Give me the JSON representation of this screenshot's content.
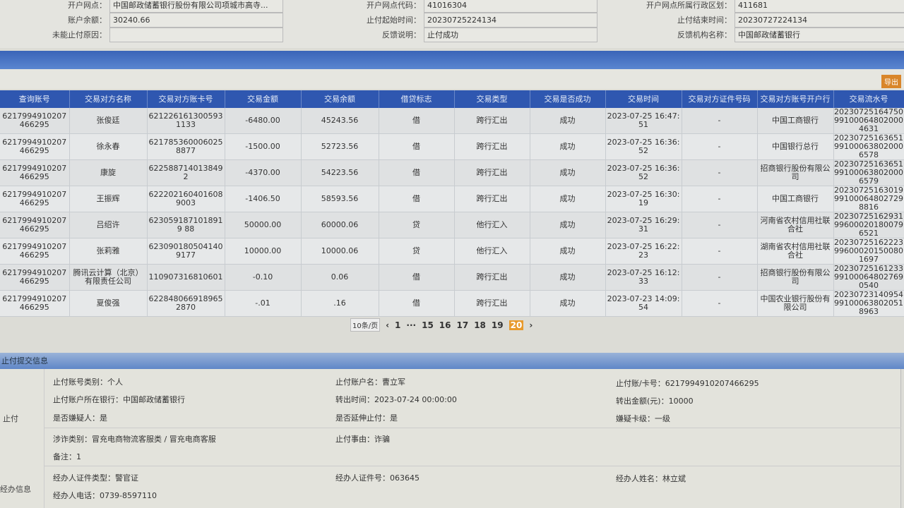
{
  "top": {
    "r1": [
      {
        "l": "开户网点：",
        "v": "中国邮政储蓄银行股份有限公司项城市高寺..."
      },
      {
        "l": "开户网点代码：",
        "v": "41016304"
      },
      {
        "l": "开户网点所属行政区划：",
        "v": "411681"
      }
    ],
    "r2": [
      {
        "l": "账户余额：",
        "v": "30240.66"
      },
      {
        "l": "止付起始时间：",
        "v": "20230725224134"
      },
      {
        "l": "止付结束时间：",
        "v": "20230727224134"
      }
    ],
    "r3": [
      {
        "l": "未能止付原因：",
        "v": ""
      },
      {
        "l": "反馈说明：",
        "v": "止付成功"
      },
      {
        "l": "反馈机构名称：",
        "v": "中国邮政储蓄银行"
      }
    ]
  },
  "toolbar": {
    "export_label": "导出"
  },
  "table": {
    "headers": [
      "查询账号",
      "交易对方名称",
      "交易对方账卡号",
      "交易金额",
      "交易余额",
      "借贷标志",
      "交易类型",
      "交易是否成功",
      "交易时间",
      "交易对方证件号码",
      "交易对方账号开户行",
      "交易流水号"
    ],
    "rows": [
      [
        "6217994910207466295",
        "张俊廷",
        "6212261613005931133",
        "-6480.00",
        "45243.56",
        "借",
        "跨行汇出",
        "成功",
        "2023-07-25 16:47:51",
        "-",
        "中国工商银行",
        "20230725164750991000648020004631"
      ],
      [
        "6217994910207466295",
        "徐永春",
        "6217853600060258877",
        "-1500.00",
        "52723.56",
        "借",
        "跨行汇出",
        "成功",
        "2023-07-25 16:36:52",
        "-",
        "中国银行总行",
        "20230725163651991000638020006578"
      ],
      [
        "6217994910207466295",
        "康旋",
        "622588714013849 2",
        "-4370.00",
        "54223.56",
        "借",
        "跨行汇出",
        "成功",
        "2023-07-25 16:36:52",
        "-",
        "招商银行股份有限公司",
        "20230725163651991000638020006579"
      ],
      [
        "6217994910207466295",
        "王振辉",
        "6222021604016089003",
        "-1406.50",
        "58593.56",
        "借",
        "跨行汇出",
        "成功",
        "2023-07-25 16:30:19",
        "-",
        "中国工商银行",
        "20230725163019991000648027298816"
      ],
      [
        "6217994910207466295",
        "吕绍许",
        "6230591871018919 88",
        "50000.00",
        "60000.06",
        "贷",
        "他行汇入",
        "成功",
        "2023-07-25 16:29:31",
        "-",
        "河南省农村信用社联合社",
        "20230725162931996000201800796521"
      ],
      [
        "6217994910207466295",
        "张莉雅",
        "6230901805041409177",
        "10000.00",
        "10000.06",
        "贷",
        "他行汇入",
        "成功",
        "2023-07-25 16:22:23",
        "-",
        "湖南省农村信用社联合社",
        "20230725162223996000201500801697"
      ],
      [
        "6217994910207466295",
        "腾讯云计算（北京）有限责任公司",
        "110907316810601",
        "-0.10",
        "0.06",
        "借",
        "跨行汇出",
        "成功",
        "2023-07-25 16:12:33",
        "-",
        "招商银行股份有限公司",
        "20230725161233991000648027690540"
      ],
      [
        "6217994910207466295",
        "夏俊强",
        "6228480669189652870",
        "-.01",
        ".16",
        "借",
        "跨行汇出",
        "成功",
        "2023-07-23 14:09:54",
        "-",
        "中国农业银行股份有限公司",
        "20230723140954991000638020518963"
      ]
    ]
  },
  "pager": {
    "page_size": "10条/页",
    "prev": "‹",
    "next": "›",
    "pages": [
      "1",
      "···",
      "15",
      "16",
      "17",
      "18",
      "19",
      "20"
    ],
    "current": "20"
  },
  "section": {
    "title": "止付提交信息"
  },
  "stop": {
    "side": "止付",
    "acct_type": "止付账号类别：个人",
    "acct_name": "止付账户名：曹立军",
    "card": "止付账/卡号：6217994910207466295",
    "bank": "止付账户所在银行：中国邮政储蓄银行",
    "out_time": "转出时间：2023-07-24 00:00:00",
    "out_amount": "转出金额(元)：10000",
    "suspect": "是否嫌疑人：是",
    "extend": "是否延伸止付：是",
    "level": "嫌疑卡级：一级",
    "fraud_type": "涉诈类别：冒充电商物流客服类 / 冒充电商客服",
    "reason": "止付事由：诈骗",
    "remark": "备注：1"
  },
  "handler": {
    "side": "经办信息",
    "id_type": "经办人证件类型：警官证",
    "id_no": "经办人证件号：063645",
    "name": "经办人姓名：林立斌",
    "phone": "经办人电话：0739-8597110"
  }
}
